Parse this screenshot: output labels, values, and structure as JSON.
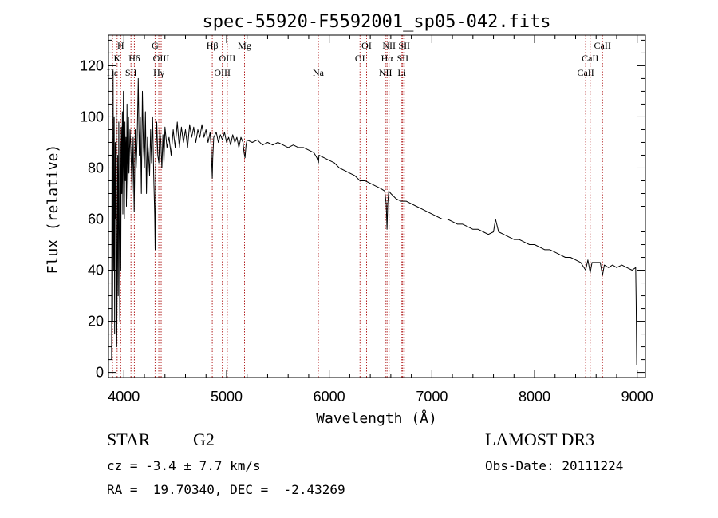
{
  "chart_data": {
    "type": "line",
    "title": "spec-55920-F5592001_sp05-042.fits",
    "xlabel": "Wavelength (Å)",
    "ylabel": "Flux (relative)",
    "xlim": [
      3850,
      9080
    ],
    "ylim": [
      -2,
      132
    ],
    "xticks": [
      4000,
      5000,
      6000,
      7000,
      8000,
      9000
    ],
    "yticks": [
      0,
      20,
      40,
      60,
      80,
      100,
      120
    ],
    "grid": false,
    "colors": {
      "spectrum": "#000000",
      "lines": "#b22222",
      "axes": "#000000"
    },
    "series": [
      {
        "name": "flux",
        "points": [
          [
            3880,
            5
          ],
          [
            3885,
            95
          ],
          [
            3890,
            20
          ],
          [
            3895,
            118
          ],
          [
            3900,
            40
          ],
          [
            3905,
            100
          ],
          [
            3910,
            15
          ],
          [
            3915,
            90
          ],
          [
            3920,
            60
          ],
          [
            3925,
            105
          ],
          [
            3930,
            10
          ],
          [
            3935,
            35
          ],
          [
            3940,
            85
          ],
          [
            3945,
            30
          ],
          [
            3950,
            98
          ],
          [
            3955,
            55
          ],
          [
            3960,
            20
          ],
          [
            3965,
            90
          ],
          [
            3970,
            40
          ],
          [
            3975,
            96
          ],
          [
            3980,
            70
          ],
          [
            3985,
            102
          ],
          [
            3990,
            62
          ],
          [
            3995,
            110
          ],
          [
            4000,
            80
          ],
          [
            4005,
            60
          ],
          [
            4010,
            98
          ],
          [
            4015,
            75
          ],
          [
            4020,
            92
          ],
          [
            4025,
            65
          ],
          [
            4030,
            105
          ],
          [
            4035,
            82
          ],
          [
            4040,
            68
          ],
          [
            4045,
            100
          ],
          [
            4050,
            78
          ],
          [
            4060,
            95
          ],
          [
            4070,
            85
          ],
          [
            4080,
            70
          ],
          [
            4090,
            92
          ],
          [
            4100,
            63
          ],
          [
            4110,
            95
          ],
          [
            4120,
            80
          ],
          [
            4130,
            92
          ],
          [
            4140,
            115
          ],
          [
            4150,
            85
          ],
          [
            4160,
            100
          ],
          [
            4170,
            70
          ],
          [
            4180,
            110
          ],
          [
            4190,
            88
          ],
          [
            4200,
            80
          ],
          [
            4210,
            102
          ],
          [
            4220,
            70
          ],
          [
            4230,
            92
          ],
          [
            4240,
            85
          ],
          [
            4250,
            77
          ],
          [
            4260,
            95
          ],
          [
            4270,
            82
          ],
          [
            4280,
            100
          ],
          [
            4290,
            78
          ],
          [
            4300,
            62
          ],
          [
            4305,
            48
          ],
          [
            4310,
            80
          ],
          [
            4320,
            98
          ],
          [
            4330,
            85
          ],
          [
            4340,
            82
          ],
          [
            4350,
            95
          ],
          [
            4360,
            90
          ],
          [
            4370,
            80
          ],
          [
            4380,
            93
          ],
          [
            4390,
            82
          ],
          [
            4400,
            96
          ],
          [
            4420,
            88
          ],
          [
            4440,
            92
          ],
          [
            4460,
            85
          ],
          [
            4480,
            95
          ],
          [
            4500,
            88
          ],
          [
            4520,
            98
          ],
          [
            4540,
            88
          ],
          [
            4560,
            96
          ],
          [
            4580,
            90
          ],
          [
            4600,
            95
          ],
          [
            4620,
            88
          ],
          [
            4640,
            97
          ],
          [
            4660,
            92
          ],
          [
            4680,
            96
          ],
          [
            4700,
            90
          ],
          [
            4720,
            95
          ],
          [
            4740,
            92
          ],
          [
            4760,
            97
          ],
          [
            4780,
            92
          ],
          [
            4800,
            95
          ],
          [
            4820,
            90
          ],
          [
            4840,
            94
          ],
          [
            4850,
            88
          ],
          [
            4855,
            83
          ],
          [
            4861,
            76
          ],
          [
            4866,
            84
          ],
          [
            4875,
            92
          ],
          [
            4900,
            94
          ],
          [
            4920,
            90
          ],
          [
            4940,
            93
          ],
          [
            4960,
            91
          ],
          [
            4980,
            94
          ],
          [
            5000,
            90
          ],
          [
            5020,
            92
          ],
          [
            5040,
            89
          ],
          [
            5060,
            93
          ],
          [
            5080,
            90
          ],
          [
            5100,
            92
          ],
          [
            5120,
            88
          ],
          [
            5140,
            92
          ],
          [
            5160,
            90
          ],
          [
            5170,
            86
          ],
          [
            5180,
            84
          ],
          [
            5190,
            89
          ],
          [
            5200,
            91
          ],
          [
            5250,
            90
          ],
          [
            5300,
            91
          ],
          [
            5350,
            89
          ],
          [
            5400,
            90
          ],
          [
            5450,
            89
          ],
          [
            5500,
            90
          ],
          [
            5550,
            89
          ],
          [
            5600,
            88
          ],
          [
            5650,
            89
          ],
          [
            5700,
            88
          ],
          [
            5750,
            88
          ],
          [
            5800,
            87
          ],
          [
            5850,
            86
          ],
          [
            5880,
            84
          ],
          [
            5895,
            82
          ],
          [
            5900,
            85
          ],
          [
            5950,
            84
          ],
          [
            6000,
            83
          ],
          [
            6050,
            82
          ],
          [
            6100,
            80
          ],
          [
            6150,
            79
          ],
          [
            6200,
            78
          ],
          [
            6250,
            77
          ],
          [
            6300,
            75
          ],
          [
            6350,
            75
          ],
          [
            6400,
            74
          ],
          [
            6450,
            73
          ],
          [
            6500,
            72
          ],
          [
            6540,
            71
          ],
          [
            6555,
            66
          ],
          [
            6563,
            56
          ],
          [
            6570,
            66
          ],
          [
            6580,
            71
          ],
          [
            6600,
            70
          ],
          [
            6650,
            68
          ],
          [
            6700,
            67
          ],
          [
            6750,
            67
          ],
          [
            6800,
            66
          ],
          [
            6850,
            65
          ],
          [
            6900,
            64
          ],
          [
            6950,
            63
          ],
          [
            7000,
            62
          ],
          [
            7050,
            61
          ],
          [
            7100,
            60
          ],
          [
            7150,
            60
          ],
          [
            7200,
            59
          ],
          [
            7250,
            58
          ],
          [
            7300,
            58
          ],
          [
            7350,
            57
          ],
          [
            7400,
            56
          ],
          [
            7450,
            56
          ],
          [
            7500,
            55
          ],
          [
            7550,
            54
          ],
          [
            7600,
            55
          ],
          [
            7620,
            60
          ],
          [
            7650,
            55
          ],
          [
            7700,
            54
          ],
          [
            7750,
            53
          ],
          [
            7800,
            52
          ],
          [
            7850,
            52
          ],
          [
            7900,
            51
          ],
          [
            7950,
            50
          ],
          [
            8000,
            50
          ],
          [
            8050,
            49
          ],
          [
            8100,
            48
          ],
          [
            8150,
            48
          ],
          [
            8200,
            47
          ],
          [
            8250,
            46
          ],
          [
            8300,
            45
          ],
          [
            8350,
            45
          ],
          [
            8400,
            44
          ],
          [
            8450,
            43
          ],
          [
            8498,
            40
          ],
          [
            8520,
            44
          ],
          [
            8542,
            39
          ],
          [
            8560,
            43
          ],
          [
            8600,
            43
          ],
          [
            8640,
            43
          ],
          [
            8662,
            38
          ],
          [
            8680,
            42
          ],
          [
            8720,
            41
          ],
          [
            8760,
            42
          ],
          [
            8800,
            41
          ],
          [
            8850,
            42
          ],
          [
            8900,
            41
          ],
          [
            8950,
            40
          ],
          [
            8985,
            41
          ],
          [
            8990,
            28
          ],
          [
            8995,
            3
          ]
        ]
      }
    ],
    "spectral_lines": [
      {
        "label": "H",
        "wavelength": 3969,
        "row": 0
      },
      {
        "label": "K",
        "wavelength": 3934,
        "row": 1
      },
      {
        "label": "Hε",
        "wavelength": 3889,
        "row": 2
      },
      {
        "label": "SII",
        "wavelength": 4069,
        "row": 2
      },
      {
        "label": "Hδ",
        "wavelength": 4102,
        "row": 1
      },
      {
        "label": "G",
        "wavelength": 4304,
        "row": 0
      },
      {
        "label": "OIII",
        "wavelength": 4363,
        "row": 1
      },
      {
        "label": "Hγ",
        "wavelength": 4340,
        "row": 2
      },
      {
        "label": "Hβ",
        "wavelength": 4861,
        "row": 0
      },
      {
        "label": "OIII",
        "wavelength": 4959,
        "row": 2
      },
      {
        "label": "OIII",
        "wavelength": 5007,
        "row": 1
      },
      {
        "label": "Mg",
        "wavelength": 5175,
        "row": 0
      },
      {
        "label": "Na",
        "wavelength": 5894,
        "row": 2
      },
      {
        "label": "OI",
        "wavelength": 6300,
        "row": 1
      },
      {
        "label": "OI",
        "wavelength": 6364,
        "row": 0
      },
      {
        "label": "NII",
        "wavelength": 6548,
        "row": 2
      },
      {
        "label": "Hα",
        "wavelength": 6563,
        "row": 1
      },
      {
        "label": "NII",
        "wavelength": 6583,
        "row": 0
      },
      {
        "label": "SII",
        "wavelength": 6716,
        "row": 1
      },
      {
        "label": "SII",
        "wavelength": 6731,
        "row": 0
      },
      {
        "label": "Li",
        "wavelength": 6708,
        "row": 2
      },
      {
        "label": "CaII",
        "wavelength": 8498,
        "row": 2
      },
      {
        "label": "CaII",
        "wavelength": 8542,
        "row": 1
      },
      {
        "label": "CaII",
        "wavelength": 8662,
        "row": 0
      }
    ]
  },
  "info": {
    "object_class": "STAR",
    "subclass": "G2",
    "survey": "LAMOST DR3",
    "cz": "cz = -3.4 ± 7.7 km/s",
    "obs_date": "Obs-Date: 20111224",
    "coords": "RA =  19.70340, DEC =  -2.43269"
  }
}
